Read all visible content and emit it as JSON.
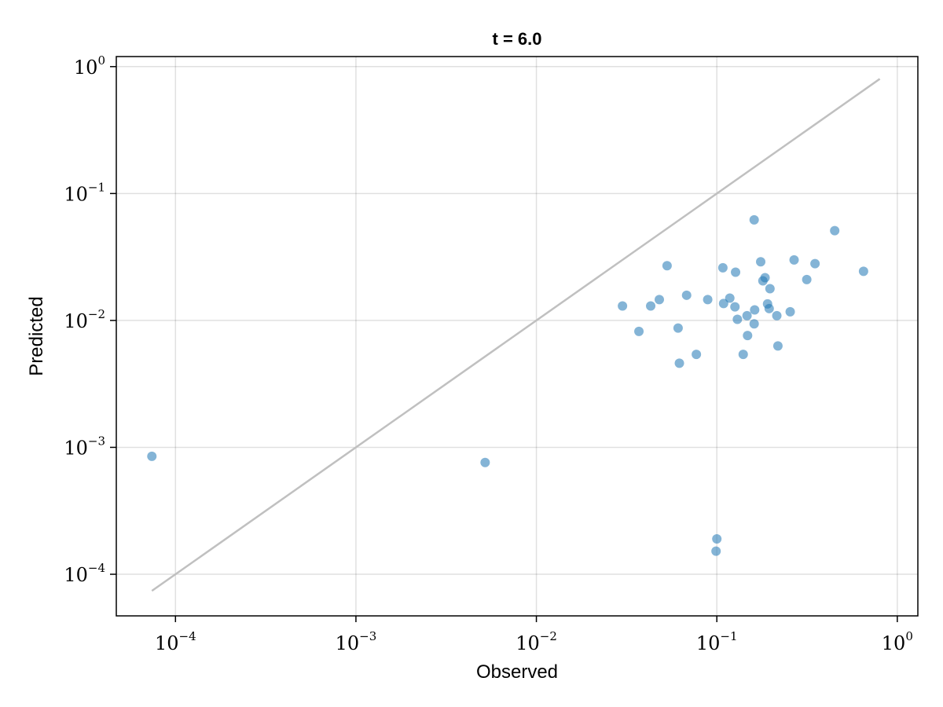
{
  "chart_data": {
    "type": "scatter",
    "title": "t = 6.0",
    "xlabel": "Observed",
    "ylabel": "Predicted",
    "xscale": "log",
    "yscale": "log",
    "xlim": [
      4.7e-05,
      1.3
    ],
    "ylim": [
      4.7e-05,
      1.2
    ],
    "grid": true,
    "colors": {
      "points": "#1f77b4",
      "reference_line": "#c0c0c0"
    },
    "x_ticks": [
      {
        "value": 0.0001,
        "base": "10",
        "exp": "−4"
      },
      {
        "value": 0.001,
        "base": "10",
        "exp": "−3"
      },
      {
        "value": 0.01,
        "base": "10",
        "exp": "−2"
      },
      {
        "value": 0.1,
        "base": "10",
        "exp": "−1"
      },
      {
        "value": 1,
        "base": "10",
        "exp": "0"
      }
    ],
    "y_ticks": [
      {
        "value": 0.0001,
        "base": "10",
        "exp": "−4"
      },
      {
        "value": 0.001,
        "base": "10",
        "exp": "−3"
      },
      {
        "value": 0.01,
        "base": "10",
        "exp": "−2"
      },
      {
        "value": 0.1,
        "base": "10",
        "exp": "−1"
      },
      {
        "value": 1,
        "base": "10",
        "exp": "0"
      }
    ],
    "reference_line": {
      "x": [
        7.4e-05,
        0.8
      ],
      "y": [
        7.4e-05,
        0.8
      ]
    },
    "points": [
      {
        "x": 7.4e-05,
        "y": 0.00085
      },
      {
        "x": 0.0052,
        "y": 0.00076
      },
      {
        "x": 0.03,
        "y": 0.013
      },
      {
        "x": 0.037,
        "y": 0.0082
      },
      {
        "x": 0.043,
        "y": 0.013
      },
      {
        "x": 0.048,
        "y": 0.0146
      },
      {
        "x": 0.053,
        "y": 0.027
      },
      {
        "x": 0.061,
        "y": 0.0087
      },
      {
        "x": 0.062,
        "y": 0.0046
      },
      {
        "x": 0.068,
        "y": 0.0158
      },
      {
        "x": 0.077,
        "y": 0.0054
      },
      {
        "x": 0.089,
        "y": 0.0146
      },
      {
        "x": 0.099,
        "y": 0.000152
      },
      {
        "x": 0.1,
        "y": 0.00019
      },
      {
        "x": 0.108,
        "y": 0.026
      },
      {
        "x": 0.109,
        "y": 0.0136
      },
      {
        "x": 0.118,
        "y": 0.015
      },
      {
        "x": 0.126,
        "y": 0.0128
      },
      {
        "x": 0.127,
        "y": 0.024
      },
      {
        "x": 0.13,
        "y": 0.0102
      },
      {
        "x": 0.14,
        "y": 0.0054
      },
      {
        "x": 0.147,
        "y": 0.0109
      },
      {
        "x": 0.148,
        "y": 0.0076
      },
      {
        "x": 0.161,
        "y": 0.0094
      },
      {
        "x": 0.161,
        "y": 0.062
      },
      {
        "x": 0.162,
        "y": 0.0121
      },
      {
        "x": 0.175,
        "y": 0.029
      },
      {
        "x": 0.18,
        "y": 0.0205
      },
      {
        "x": 0.185,
        "y": 0.0217
      },
      {
        "x": 0.191,
        "y": 0.0135
      },
      {
        "x": 0.195,
        "y": 0.0124
      },
      {
        "x": 0.197,
        "y": 0.0178
      },
      {
        "x": 0.215,
        "y": 0.0109
      },
      {
        "x": 0.218,
        "y": 0.0063
      },
      {
        "x": 0.255,
        "y": 0.0117
      },
      {
        "x": 0.268,
        "y": 0.03
      },
      {
        "x": 0.315,
        "y": 0.021
      },
      {
        "x": 0.35,
        "y": 0.028
      },
      {
        "x": 0.45,
        "y": 0.051
      },
      {
        "x": 0.65,
        "y": 0.0244
      }
    ]
  }
}
